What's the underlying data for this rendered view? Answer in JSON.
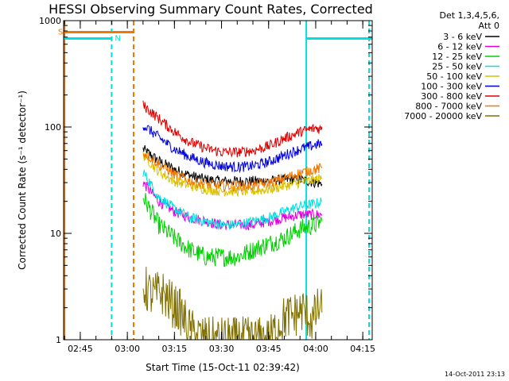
{
  "chart_data": {
    "type": "line",
    "title": "HESSI Observing Summary Count Rates, Corrected",
    "xlabel": "Start Time (15-Oct-11 02:39:42)",
    "ylabel": "Corrected Count Rate (s⁻¹ detector⁻¹)",
    "yscale": "log",
    "ylim": [
      1,
      1000
    ],
    "xlim": [
      "02:39:42",
      "04:18:00"
    ],
    "xticks": [
      "02:45",
      "03:00",
      "03:15",
      "03:30",
      "03:45",
      "04:00",
      "04:15"
    ],
    "yticks": [
      "1",
      "10",
      "100",
      "1000"
    ],
    "grid": false,
    "legend": {
      "placement": "right",
      "header": [
        "Det 1,3,4,5,6,",
        "Att 0"
      ]
    },
    "series": [
      {
        "name": "3 - 6 keV",
        "color": "#000000",
        "x": [
          "03:05",
          "03:10",
          "03:15",
          "03:20",
          "03:25",
          "03:30",
          "03:35",
          "03:40",
          "03:45",
          "03:50",
          "03:55",
          "04:00",
          "04:02"
        ],
        "y": [
          62,
          48,
          40,
          35,
          32,
          31,
          31,
          31,
          31,
          32,
          32,
          30,
          29
        ]
      },
      {
        "name": "6 - 12 keV",
        "color": "#e000e0",
        "x": [
          "03:05",
          "03:10",
          "03:15",
          "03:20",
          "03:25",
          "03:30",
          "03:35",
          "03:40",
          "03:45",
          "03:50",
          "03:55",
          "04:00",
          "04:02"
        ],
        "y": [
          30,
          20,
          16,
          14,
          13,
          12,
          12,
          12,
          13,
          14,
          15,
          15,
          15
        ]
      },
      {
        "name": "12 - 25 keV",
        "color": "#00d000",
        "x": [
          "03:05",
          "03:10",
          "03:15",
          "03:20",
          "03:25",
          "03:30",
          "03:35",
          "03:40",
          "03:45",
          "03:50",
          "03:55",
          "04:00",
          "04:02"
        ],
        "y": [
          22,
          12,
          9,
          7,
          6,
          6,
          6,
          7,
          8,
          9,
          11,
          12,
          13
        ]
      },
      {
        "name": "25 - 50 keV",
        "color": "#00e0e0",
        "x": [
          "03:05",
          "03:10",
          "03:15",
          "03:20",
          "03:25",
          "03:30",
          "03:35",
          "03:40",
          "03:45",
          "03:50",
          "03:55",
          "04:00",
          "04:02"
        ],
        "y": [
          38,
          22,
          17,
          14,
          13,
          12,
          12,
          13,
          14,
          16,
          18,
          19,
          20
        ]
      },
      {
        "name": "50 - 100 keV",
        "color": "#d8c000",
        "x": [
          "03:05",
          "03:10",
          "03:15",
          "03:20",
          "03:25",
          "03:30",
          "03:35",
          "03:40",
          "03:45",
          "03:50",
          "03:55",
          "04:00",
          "04:02"
        ],
        "y": [
          55,
          38,
          31,
          28,
          26,
          25,
          25,
          25,
          26,
          28,
          30,
          32,
          33
        ]
      },
      {
        "name": "100 - 300 keV",
        "color": "#0000e0",
        "x": [
          "03:05",
          "03:10",
          "03:15",
          "03:20",
          "03:25",
          "03:30",
          "03:35",
          "03:40",
          "03:45",
          "03:50",
          "03:55",
          "04:00",
          "04:02"
        ],
        "y": [
          105,
          80,
          62,
          52,
          46,
          43,
          42,
          43,
          47,
          54,
          62,
          68,
          70
        ]
      },
      {
        "name": "300 - 800 keV",
        "color": "#e00000",
        "x": [
          "03:05",
          "03:10",
          "03:15",
          "03:20",
          "03:25",
          "03:30",
          "03:35",
          "03:40",
          "03:45",
          "03:50",
          "03:55",
          "04:00",
          "04:02"
        ],
        "y": [
          160,
          120,
          90,
          72,
          63,
          58,
          58,
          60,
          66,
          78,
          90,
          98,
          95
        ]
      },
      {
        "name": "800 - 7000 keV",
        "color": "#f07800",
        "x": [
          "03:05",
          "03:10",
          "03:15",
          "03:20",
          "03:25",
          "03:30",
          "03:35",
          "03:40",
          "03:45",
          "03:50",
          "03:55",
          "04:00",
          "04:02"
        ],
        "y": [
          58,
          45,
          36,
          31,
          29,
          28,
          28,
          28,
          30,
          33,
          37,
          40,
          41
        ]
      },
      {
        "name": "7000 - 20000 keV",
        "color": "#807000",
        "x": [
          "03:05",
          "03:08",
          "03:11",
          "03:14",
          "03:17",
          "03:20",
          "03:25",
          "03:35",
          "03:45",
          "03:50",
          "03:53",
          "03:56",
          "03:59",
          "04:01",
          "04:02"
        ],
        "y": [
          3.2,
          2.6,
          2.8,
          2.2,
          1.8,
          1.2,
          1.0,
          1.0,
          1.0,
          1.6,
          1.7,
          1.9,
          1.5,
          2.0,
          1.8
        ]
      }
    ],
    "annotations": [
      {
        "label": "S",
        "color": "#f07800",
        "x_start": "02:39:42",
        "x_end": "03:02:00",
        "level": 780
      },
      {
        "label": "N",
        "color": "#00e0e0",
        "x_start": "02:39:42",
        "x_end": "02:55:00",
        "level": 680
      },
      {
        "label": "",
        "color": "#00e0e0",
        "x_start": "03:57:00",
        "x_end": "04:18:00",
        "level": 680
      }
    ],
    "vlines": [
      {
        "x": "02:40:00",
        "color": "#f07800",
        "style": "solid"
      },
      {
        "x": "02:55:00",
        "color": "#00e0e0",
        "style": "dashed"
      },
      {
        "x": "03:02:00",
        "color": "#f07800",
        "style": "dashed"
      },
      {
        "x": "03:57:00",
        "color": "#00e0e0",
        "style": "solid"
      },
      {
        "x": "04:17:00",
        "color": "#00e0e0",
        "style": "dashed"
      }
    ]
  },
  "footer_timestamp": "14-Oct-2011 23:13"
}
